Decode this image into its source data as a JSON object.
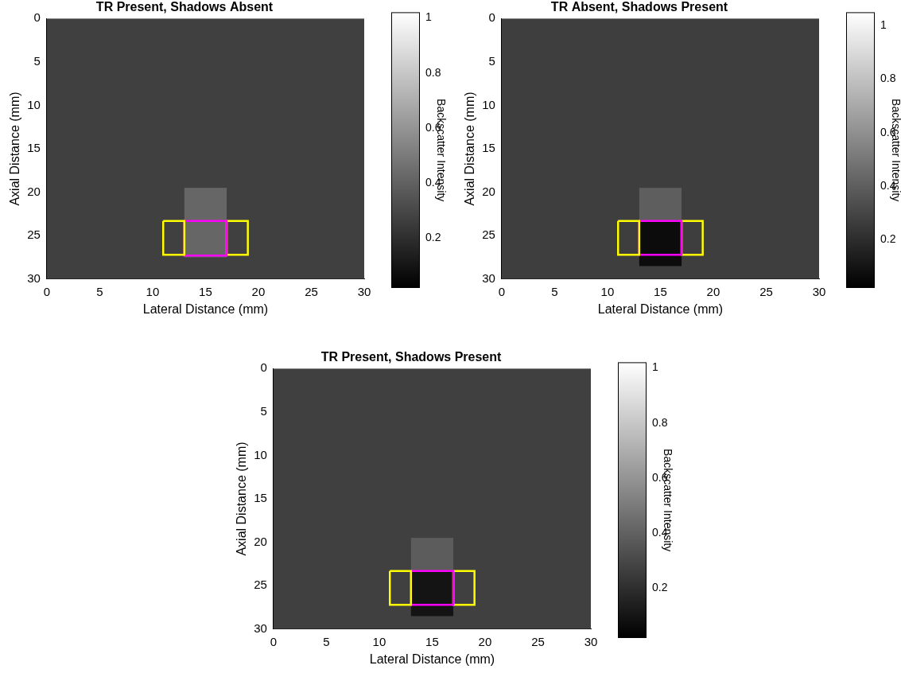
{
  "chart_data": [
    {
      "type": "heatmap",
      "title": "TR Present, Shadows Absent",
      "xlabel": "Lateral Distance (mm)",
      "ylabel": "Axial Distance (mm)",
      "xlim": [
        0,
        30
      ],
      "ylim": [
        30,
        0
      ],
      "xticks": [
        0,
        5,
        10,
        15,
        20,
        25,
        30
      ],
      "yticks": [
        0,
        5,
        10,
        15,
        20,
        25,
        30
      ],
      "grid": false,
      "regions": [
        {
          "x": [
            0,
            30
          ],
          "y": [
            0,
            30
          ],
          "intensity": 0.27
        },
        {
          "x": [
            13,
            17
          ],
          "y": [
            19.5,
            27.5
          ],
          "intensity": 0.42
        }
      ],
      "boxes": [
        {
          "x": [
            11,
            13
          ],
          "y": [
            23.3,
            27.2
          ],
          "color": "#ffff00"
        },
        {
          "x": [
            13,
            17
          ],
          "y": [
            23.3,
            27.3
          ],
          "color": "#ff00ff"
        },
        {
          "x": [
            17,
            19
          ],
          "y": [
            23.3,
            27.2
          ],
          "color": "#ffff00"
        }
      ],
      "colorbar": {
        "label": "Backscatter Intensity",
        "range": [
          0.02,
          1.02
        ],
        "ticks": [
          0.2,
          0.4,
          0.6,
          0.8,
          1
        ]
      }
    },
    {
      "type": "heatmap",
      "title": "TR Absent, Shadows Present",
      "xlabel": "Lateral Distance (mm)",
      "ylabel": "Axial Distance (mm)",
      "xlim": [
        0,
        30
      ],
      "ylim": [
        30,
        0
      ],
      "xticks": [
        0,
        5,
        10,
        15,
        20,
        25,
        30
      ],
      "yticks": [
        0,
        5,
        10,
        15,
        20,
        25,
        30
      ],
      "grid": false,
      "regions": [
        {
          "x": [
            0,
            30
          ],
          "y": [
            0,
            30
          ],
          "intensity": 0.27
        },
        {
          "x": [
            13,
            17
          ],
          "y": [
            19.5,
            23.3
          ],
          "intensity": 0.4
        },
        {
          "x": [
            13,
            17
          ],
          "y": [
            23.3,
            28.5
          ],
          "intensity": 0.07
        }
      ],
      "boxes": [
        {
          "x": [
            11,
            13
          ],
          "y": [
            23.3,
            27.2
          ],
          "color": "#ffff00"
        },
        {
          "x": [
            13,
            17
          ],
          "y": [
            23.3,
            27.2
          ],
          "color": "#ff00ff"
        },
        {
          "x": [
            17,
            19
          ],
          "y": [
            23.3,
            27.2
          ],
          "color": "#ffff00"
        }
      ],
      "colorbar": {
        "label": "Backscatter Intensity",
        "range": [
          0.02,
          1.05
        ],
        "ticks": [
          0.2,
          0.4,
          0.6,
          0.8,
          1
        ]
      }
    },
    {
      "type": "heatmap",
      "title": "TR Present, Shadows Present",
      "xlabel": "Lateral Distance (mm)",
      "ylabel": "Axial Distance (mm)",
      "xlim": [
        0,
        30
      ],
      "ylim": [
        30,
        0
      ],
      "xticks": [
        0,
        5,
        10,
        15,
        20,
        25,
        30
      ],
      "yticks": [
        0,
        5,
        10,
        15,
        20,
        25,
        30
      ],
      "grid": false,
      "regions": [
        {
          "x": [
            0,
            30
          ],
          "y": [
            0,
            30
          ],
          "intensity": 0.27
        },
        {
          "x": [
            13,
            17
          ],
          "y": [
            19.5,
            23.3
          ],
          "intensity": 0.38
        },
        {
          "x": [
            13,
            17
          ],
          "y": [
            23.3,
            28.5
          ],
          "intensity": 0.1
        }
      ],
      "boxes": [
        {
          "x": [
            11,
            13
          ],
          "y": [
            23.3,
            27.2
          ],
          "color": "#ffff00"
        },
        {
          "x": [
            13,
            17
          ],
          "y": [
            23.3,
            27.2
          ],
          "color": "#ff00ff"
        },
        {
          "x": [
            17,
            19
          ],
          "y": [
            23.3,
            27.2
          ],
          "color": "#ffff00"
        }
      ],
      "colorbar": {
        "label": "Backscatter Intensity",
        "range": [
          0.02,
          1.02
        ],
        "ticks": [
          0.2,
          0.4,
          0.6,
          0.8,
          1
        ]
      }
    }
  ]
}
